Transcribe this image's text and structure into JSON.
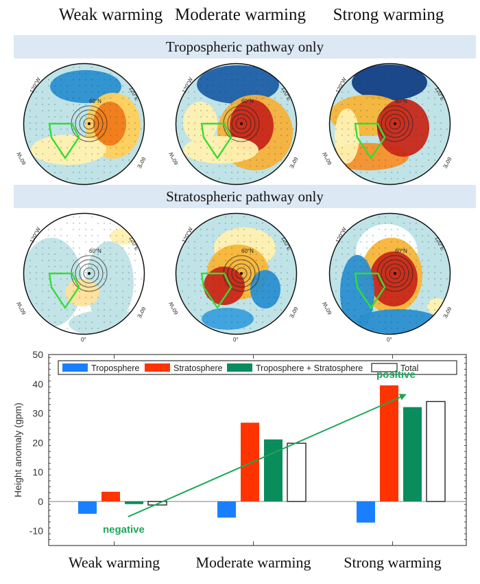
{
  "columns": [
    "Weak warming",
    "Moderate warming",
    "Strong warming"
  ],
  "bands": {
    "tropospheric": "Tropospheric pathway only",
    "stratospheric": "Stratospheric pathway only"
  },
  "map_labels": {
    "lon_120w": "120°W",
    "lon_120e": "120°E",
    "lon_60w": "60°W",
    "lon_60e": "60°E",
    "lon_0": "0°",
    "lat_60n": "60°N"
  },
  "colors": {
    "band": "#dce8f4",
    "troposphere": "#1a7fff",
    "stratosphere": "#ff3300",
    "both": "#0a8c5c",
    "total": "#ffffff",
    "arrow": "#1aa858",
    "region_box": "#33dd33"
  },
  "chart_data": {
    "type": "bar",
    "title": "",
    "xlabel": "",
    "ylabel": "Height anomaly (gpm)",
    "ylim": [
      -15,
      50
    ],
    "yticks": [
      -10,
      0,
      10,
      20,
      30,
      40,
      50
    ],
    "grid": false,
    "legend_position": "top",
    "categories": [
      "Weak warming",
      "Moderate warming",
      "Strong warming"
    ],
    "series": [
      {
        "name": "Troposphere",
        "color": "#1a7fff",
        "values": [
          -4.2,
          -5.5,
          -7.2
        ]
      },
      {
        "name": "Stratosphere",
        "color": "#ff3300",
        "values": [
          3.3,
          26.8,
          39.5
        ]
      },
      {
        "name": "Troposphere + Stratosphere",
        "color": "#0a8c5c",
        "values": [
          -0.9,
          21.1,
          32.1
        ]
      },
      {
        "name": "Total",
        "color": "#ffffff",
        "values": [
          -1.2,
          19.8,
          34.0
        ]
      }
    ],
    "annotations": [
      {
        "text": "negative",
        "color": "#1aa858"
      },
      {
        "text": "positive",
        "color": "#1aa858"
      }
    ],
    "trend_arrow": {
      "from": {
        "category_index": 0.1,
        "value": -5.2
      },
      "to": {
        "category_index": 2.1,
        "value": 36.5
      }
    }
  }
}
